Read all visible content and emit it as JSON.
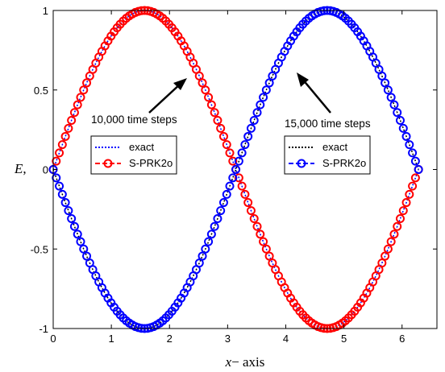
{
  "chart_data": {
    "type": "line",
    "xlabel_var": "x",
    "xlabel_rest": "− axis",
    "ylabel_var": "E",
    "ylabel_rest": ",",
    "xlim": [
      0,
      6.6
    ],
    "ylim": [
      -1,
      1
    ],
    "x_ticks": [
      0,
      1,
      2,
      3,
      4,
      5,
      6
    ],
    "y_ticks": [
      1,
      0.5,
      0,
      -0.5,
      -1
    ],
    "y_tick_labels": [
      "1",
      "0.5",
      "0",
      "-0.5",
      "-1"
    ],
    "x_range": [
      0,
      6.2832
    ],
    "grid": false,
    "series": [
      {
        "name": "exact",
        "color": "#0000ff",
        "style": "dotted",
        "function": "sin(x)",
        "group": "10,000 time steps"
      },
      {
        "name": "S-PRK2o",
        "color": "#ff0000",
        "style": "dashed-circle",
        "function": "sin(x)",
        "group": "10,000 time steps"
      },
      {
        "name": "exact",
        "color": "#000000",
        "style": "dotted",
        "function": "-sin(x)",
        "group": "15,000 time steps"
      },
      {
        "name": "S-PRK2o",
        "color": "#0000ff",
        "style": "dashed-circle",
        "function": "-sin(x)",
        "group": "15,000 time steps"
      }
    ],
    "annotations": [
      {
        "text": "10,000 time steps"
      },
      {
        "text": "15,000 time steps"
      }
    ]
  }
}
